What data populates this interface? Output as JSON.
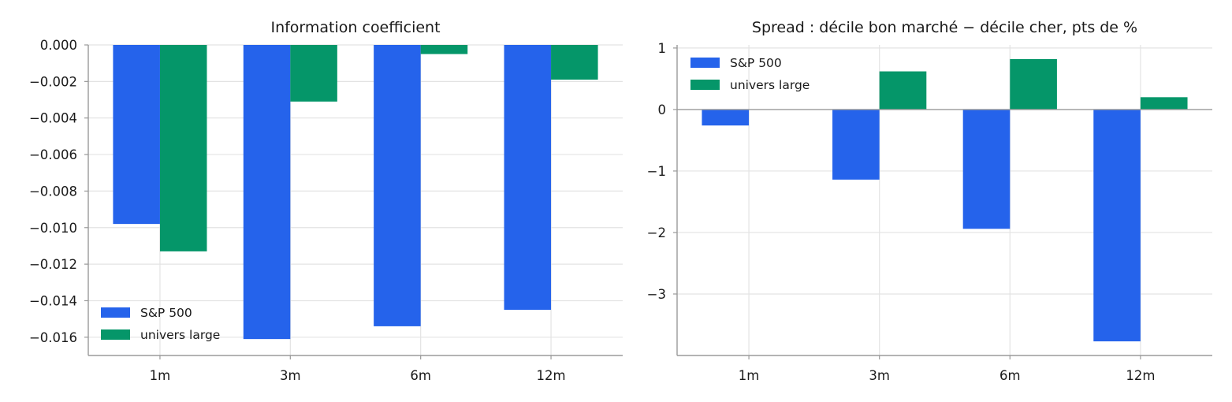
{
  "colors": {
    "sp500": "#2563eb",
    "univers": "#059669"
  },
  "chart_data": [
    {
      "type": "bar",
      "title": "Information coefficient",
      "categories": [
        "1m",
        "3m",
        "6m",
        "12m"
      ],
      "series": [
        {
          "name": "S&P 500",
          "values": [
            -0.0098,
            -0.0161,
            -0.0154,
            -0.0145
          ]
        },
        {
          "name": "univers large",
          "values": [
            -0.0113,
            -0.0031,
            -0.0005,
            -0.0019
          ]
        }
      ],
      "ylim": [
        -0.017,
        0.0
      ],
      "yticks": [
        0.0,
        -0.002,
        -0.004,
        -0.006,
        -0.008,
        -0.01,
        -0.012,
        -0.014,
        -0.016
      ],
      "ytick_labels": [
        "0.000",
        "−0.002",
        "−0.004",
        "−0.006",
        "−0.008",
        "−0.010",
        "−0.012",
        "−0.014",
        "−0.016"
      ],
      "grid": true,
      "legend_position": "lower-left"
    },
    {
      "type": "bar",
      "title": "Spread : décile bon marché − décile cher, pts de %",
      "categories": [
        "1m",
        "3m",
        "6m",
        "12m"
      ],
      "series": [
        {
          "name": "S&P 500",
          "values": [
            -0.26,
            -1.14,
            -1.94,
            -3.77
          ]
        },
        {
          "name": "univers large",
          "values": [
            0.0,
            0.62,
            0.82,
            0.2
          ]
        }
      ],
      "ylim": [
        -4.0,
        1.05
      ],
      "yticks": [
        1,
        0,
        -1,
        -2,
        -3
      ],
      "ytick_labels": [
        "1",
        "0",
        "−1",
        "−2",
        "−3"
      ],
      "grid": true,
      "legend_position": "upper-left"
    }
  ]
}
